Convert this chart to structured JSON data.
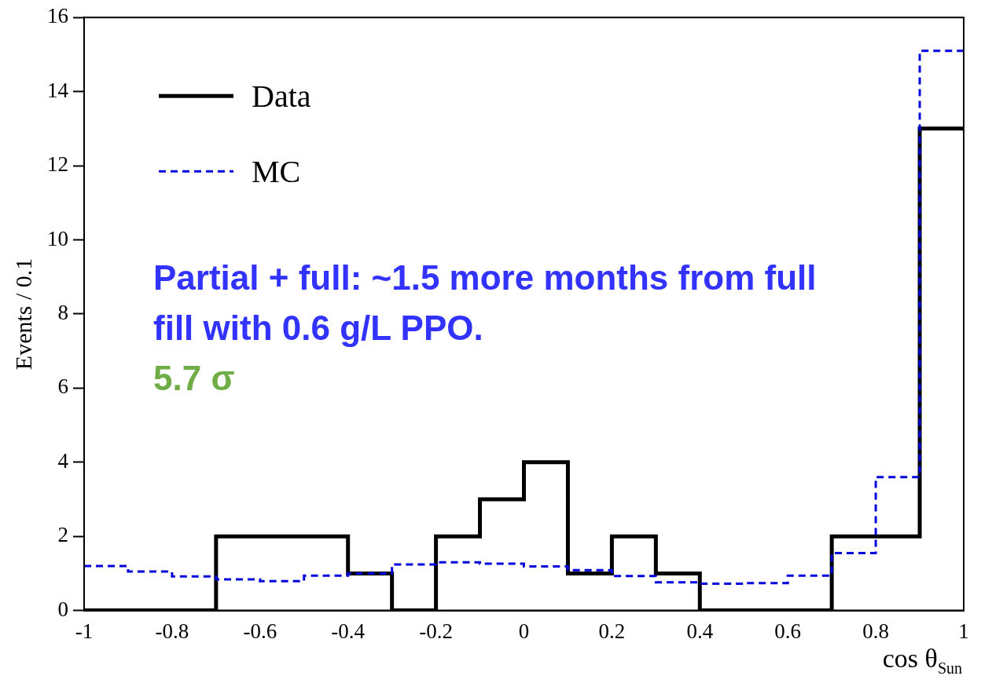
{
  "chart_data": {
    "type": "histogram",
    "bins": [
      -1,
      -0.9,
      -0.8,
      -0.7,
      -0.6,
      -0.5,
      -0.4,
      -0.3,
      -0.2,
      -0.1,
      0,
      0.1,
      0.2,
      0.3,
      0.4,
      0.5,
      0.6,
      0.7,
      0.8,
      0.9,
      1
    ],
    "series": [
      {
        "name": "MC",
        "color": "#0000dd",
        "line_style": "dashed",
        "values": [
          1.2,
          1.05,
          0.92,
          0.84,
          0.79,
          0.94,
          1.0,
          1.24,
          1.3,
          1.26,
          1.19,
          1.09,
          0.93,
          0.76,
          0.72,
          0.74,
          0.94,
          1.55,
          3.6,
          15.1
        ]
      },
      {
        "name": "Data",
        "color": "#000000",
        "line_style": "solid",
        "values": [
          0,
          0,
          0,
          2,
          2,
          2,
          1,
          0,
          2,
          3,
          4,
          1,
          2,
          1,
          0,
          0,
          0,
          2,
          2,
          13
        ]
      }
    ],
    "xlim": [
      -1,
      1
    ],
    "xticks": [
      -1,
      -0.8,
      -0.6,
      -0.4,
      -0.2,
      0,
      0.2,
      0.4,
      0.6,
      0.8,
      1
    ],
    "ylim": [
      0,
      16
    ],
    "yticks": [
      0,
      2,
      4,
      6,
      8,
      10,
      12,
      14,
      16
    ],
    "xlabel": "cos θ$_{Sun}$",
    "ylabel": "Events / 0.1",
    "legend": "top left",
    "annotations": [
      "Partial + full: ~1.5 more months from full fill with 0.6 g/L PPO.",
      "5.7 σ"
    ]
  }
}
